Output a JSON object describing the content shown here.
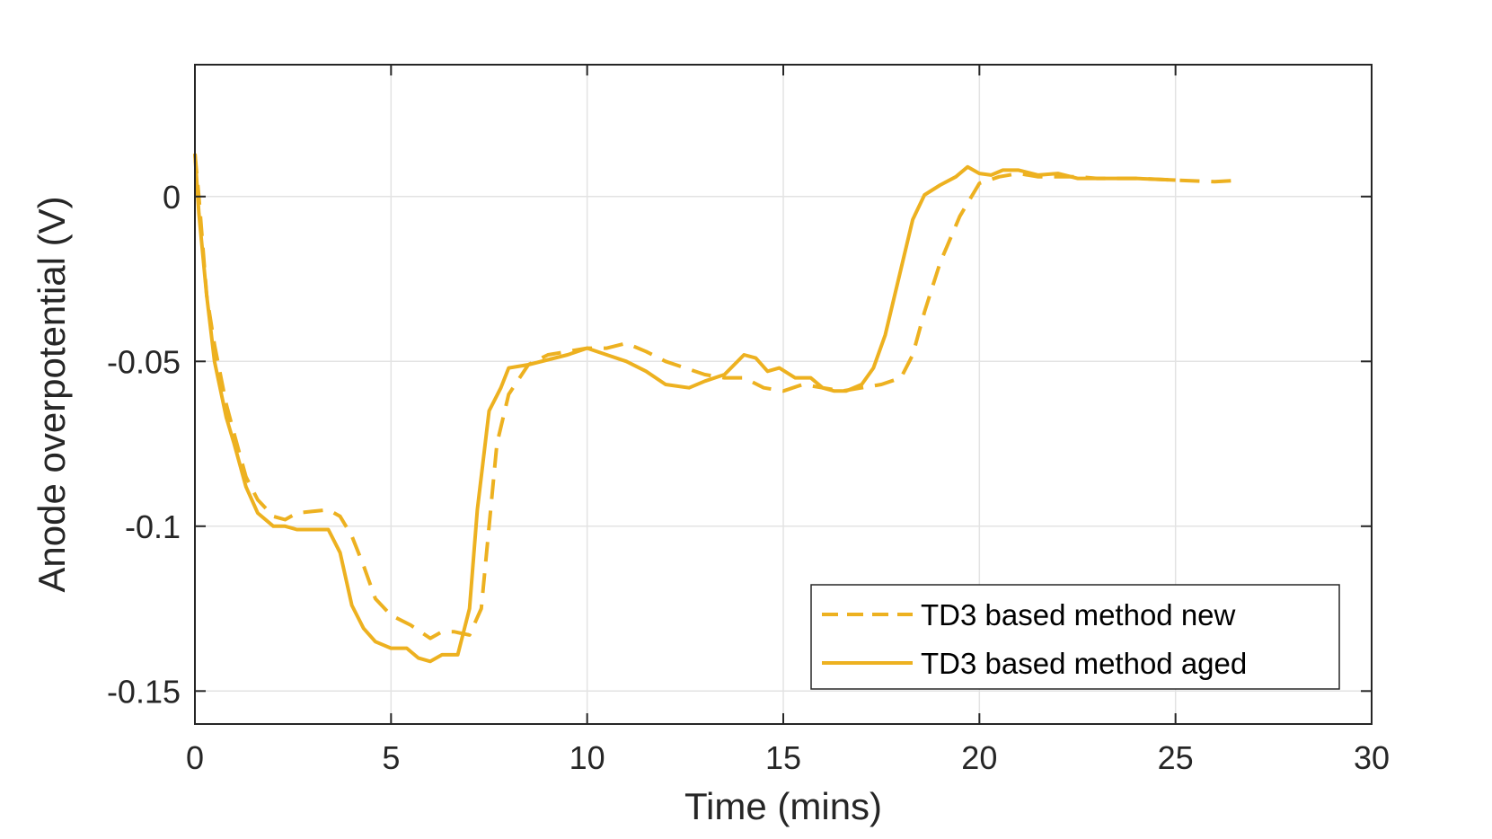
{
  "chart_data": {
    "type": "line",
    "title": "",
    "xlabel": "Time (mins)",
    "ylabel": "Anode overpotential (V)",
    "xlim": [
      0,
      30
    ],
    "ylim": [
      -0.16,
      0.04
    ],
    "x_ticks": [
      0,
      5,
      10,
      15,
      20,
      25,
      30
    ],
    "x_tick_labels": [
      "0",
      "5",
      "10",
      "15",
      "20",
      "25",
      "30"
    ],
    "y_ticks": [
      0,
      -0.05,
      -0.1,
      -0.15
    ],
    "y_tick_labels": [
      "0",
      "-0.05",
      "-0.1",
      "-0.15"
    ],
    "grid": true,
    "legend_position": "bottom-right",
    "series": [
      {
        "name": "TD3 based method new",
        "color": "#EDB120",
        "style": "dashed",
        "x": [
          0,
          0.1,
          0.3,
          0.5,
          0.8,
          1.0,
          1.3,
          1.6,
          2.0,
          2.3,
          2.6,
          3.0,
          3.4,
          3.7,
          4.0,
          4.3,
          4.6,
          5.0,
          5.5,
          6.0,
          6.3,
          6.6,
          7.0,
          7.3,
          7.5,
          7.7,
          8.0,
          8.5,
          9.0,
          9.5,
          10.0,
          10.5,
          11.0,
          11.5,
          12.0,
          12.5,
          13.0,
          13.5,
          14.0,
          14.5,
          15.0,
          15.5,
          16.0,
          16.5,
          17.0,
          17.5,
          18.0,
          18.3,
          18.6,
          19.0,
          19.5,
          20.0,
          20.5,
          21.0,
          21.5,
          22.0,
          22.5,
          23.0,
          24.0,
          25.0,
          26.0,
          26.7
        ],
        "y": [
          0.013,
          0.0,
          -0.03,
          -0.045,
          -0.063,
          -0.072,
          -0.085,
          -0.092,
          -0.097,
          -0.098,
          -0.096,
          -0.0955,
          -0.095,
          -0.097,
          -0.103,
          -0.112,
          -0.122,
          -0.127,
          -0.13,
          -0.134,
          -0.132,
          -0.132,
          -0.133,
          -0.125,
          -0.1,
          -0.075,
          -0.06,
          -0.051,
          -0.048,
          -0.047,
          -0.046,
          -0.046,
          -0.0445,
          -0.047,
          -0.05,
          -0.052,
          -0.054,
          -0.055,
          -0.055,
          -0.058,
          -0.059,
          -0.057,
          -0.058,
          -0.059,
          -0.058,
          -0.057,
          -0.055,
          -0.048,
          -0.035,
          -0.02,
          -0.006,
          0.004,
          0.006,
          0.007,
          0.006,
          0.006,
          0.006,
          0.0055,
          0.0055,
          0.005,
          0.0045,
          0.005
        ]
      },
      {
        "name": "TD3 based method aged",
        "color": "#EDB120",
        "style": "solid",
        "x": [
          0,
          0.1,
          0.3,
          0.5,
          0.8,
          1.0,
          1.3,
          1.6,
          2.0,
          2.3,
          2.6,
          3.0,
          3.4,
          3.7,
          4.0,
          4.3,
          4.6,
          5.0,
          5.4,
          5.7,
          6.0,
          6.3,
          6.7,
          7.0,
          7.2,
          7.5,
          7.8,
          8.0,
          8.5,
          9.0,
          9.5,
          10.0,
          10.5,
          11.0,
          11.5,
          12.0,
          12.6,
          13.0,
          13.5,
          14.0,
          14.3,
          14.6,
          14.9,
          15.3,
          15.7,
          16.0,
          16.3,
          16.6,
          17.0,
          17.3,
          17.6,
          18.0,
          18.3,
          18.6,
          19.0,
          19.4,
          19.7,
          20.0,
          20.3,
          20.6,
          21.0,
          21.5,
          22.0,
          22.5,
          23.0,
          24.0,
          25.0
        ],
        "y": [
          0.013,
          -0.005,
          -0.03,
          -0.05,
          -0.067,
          -0.075,
          -0.088,
          -0.096,
          -0.1,
          -0.1,
          -0.101,
          -0.101,
          -0.101,
          -0.108,
          -0.124,
          -0.131,
          -0.135,
          -0.137,
          -0.137,
          -0.14,
          -0.141,
          -0.139,
          -0.139,
          -0.125,
          -0.095,
          -0.065,
          -0.058,
          -0.052,
          -0.051,
          -0.0495,
          -0.048,
          -0.046,
          -0.048,
          -0.05,
          -0.053,
          -0.057,
          -0.058,
          -0.056,
          -0.054,
          -0.048,
          -0.049,
          -0.053,
          -0.052,
          -0.055,
          -0.055,
          -0.058,
          -0.059,
          -0.059,
          -0.057,
          -0.052,
          -0.042,
          -0.022,
          -0.007,
          0.0005,
          0.0035,
          0.006,
          0.009,
          0.007,
          0.0065,
          0.008,
          0.008,
          0.0065,
          0.007,
          0.0055,
          0.0055,
          0.0055,
          0.005
        ]
      }
    ]
  }
}
